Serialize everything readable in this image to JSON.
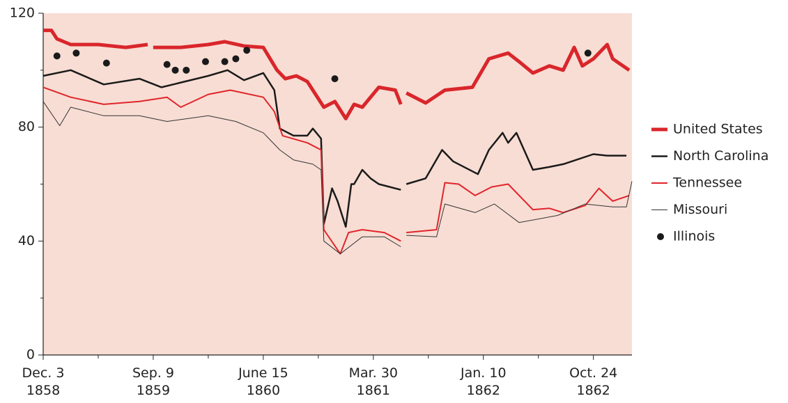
{
  "chart_data": {
    "type": "line",
    "background": "#f8ddd4",
    "xlim": [
      0,
      214
    ],
    "ylim": [
      0,
      120
    ],
    "yticks": [
      0,
      40,
      80,
      120
    ],
    "yticks_minor": [
      20,
      60,
      100
    ],
    "xticks": [
      {
        "value": 0,
        "label": [
          "Dec. 3",
          "1858"
        ]
      },
      {
        "value": 40,
        "label": [
          "Sep. 9",
          "1859"
        ]
      },
      {
        "value": 80,
        "label": [
          "June 15",
          "1860"
        ]
      },
      {
        "value": 120,
        "label": [
          "Mar. 30",
          "1861"
        ]
      },
      {
        "value": 160,
        "label": [
          "Jan. 10",
          "1862"
        ]
      },
      {
        "value": 200,
        "label": [
          "Oct. 24",
          "1862"
        ]
      }
    ],
    "xticks_minor": [
      20,
      60,
      100,
      140,
      180
    ],
    "legend": "right",
    "series": [
      {
        "name": "United States",
        "color": "#d9262b",
        "line_width": 5,
        "mode": "line",
        "x": [
          0,
          3,
          5,
          10,
          20,
          30,
          38,
          39,
          40,
          50,
          60,
          66,
          73,
          80,
          85,
          88,
          92,
          96,
          102,
          106,
          110,
          113,
          116,
          122,
          128,
          130,
          131,
          132,
          139,
          146,
          156,
          162,
          169,
          173,
          178,
          184,
          189,
          193,
          196,
          200,
          205,
          207,
          213
        ],
        "values": [
          114,
          114,
          111,
          109,
          109,
          108,
          109,
          null,
          108,
          108,
          109,
          110,
          108.5,
          108,
          100,
          97,
          98,
          96,
          87,
          89,
          83,
          88,
          87,
          94,
          93,
          88,
          null,
          92,
          88.5,
          93,
          94,
          104,
          106,
          103,
          99,
          101.5,
          100,
          108,
          101.5,
          104,
          109,
          104,
          100
        ]
      },
      {
        "name": "North Carolina",
        "color": "#1a1a1a",
        "line_width": 2.5,
        "mode": "line",
        "x": [
          0,
          10,
          22,
          35,
          43,
          60,
          67,
          73,
          80,
          84,
          86,
          91,
          96,
          98,
          101,
          102,
          105,
          107,
          110,
          112,
          113,
          116,
          119,
          122,
          130,
          131,
          132,
          139,
          145,
          149,
          158,
          162,
          167,
          169,
          172,
          178,
          184,
          189,
          200,
          205,
          212
        ],
        "values": [
          98,
          100,
          95,
          97,
          94,
          98,
          100,
          96.5,
          99,
          93,
          79.5,
          77,
          77,
          79.5,
          76,
          46,
          58.5,
          54,
          45,
          60,
          60,
          65,
          62,
          60,
          58,
          null,
          60,
          62,
          72,
          68,
          63.5,
          72,
          78,
          74.5,
          78,
          65,
          66,
          67,
          70.5,
          70,
          70
        ]
      },
      {
        "name": "Tennessee",
        "color": "#e0252b",
        "line_width": 2,
        "mode": "line",
        "x": [
          0,
          10,
          22,
          35,
          45,
          50,
          60,
          68,
          80,
          84,
          87,
          96,
          101,
          102,
          108,
          111,
          116,
          124,
          130,
          131,
          132,
          143,
          146,
          151,
          157,
          163,
          169,
          178,
          184,
          189,
          197,
          202,
          207,
          213
        ],
        "values": [
          94,
          90.5,
          88,
          89,
          90.5,
          87,
          91.5,
          93,
          90.5,
          85.5,
          77,
          74.5,
          72,
          44,
          35.5,
          43,
          44,
          43,
          40,
          null,
          43,
          44,
          60.5,
          60,
          56,
          59,
          60,
          51,
          51.5,
          50,
          52.5,
          58.5,
          54,
          56
        ]
      },
      {
        "name": "Missouri",
        "color": "#333333",
        "line_width": 1,
        "mode": "line",
        "x": [
          0,
          6,
          10,
          22,
          35,
          45,
          60,
          70,
          80,
          86,
          91,
          98,
          101,
          102,
          108,
          116,
          124,
          130,
          131,
          132,
          143,
          146,
          157,
          164,
          173,
          187,
          197,
          207,
          212,
          214
        ],
        "values": [
          89,
          80.5,
          87,
          84,
          84,
          82,
          84,
          82,
          78,
          72,
          68.5,
          67,
          65,
          40,
          35.5,
          41.5,
          41.5,
          38,
          null,
          42,
          41.5,
          53,
          50,
          53,
          46.5,
          49,
          53,
          52,
          52,
          61
        ]
      },
      {
        "name": "Illinois",
        "color": "#1a1a1a",
        "mode": "markers",
        "x": [
          5,
          12,
          23,
          45,
          48,
          52,
          59,
          66,
          70,
          74,
          106,
          198
        ],
        "values": [
          105,
          106,
          102.5,
          102,
          100,
          100,
          103,
          103,
          104,
          107,
          97,
          106
        ]
      }
    ]
  }
}
